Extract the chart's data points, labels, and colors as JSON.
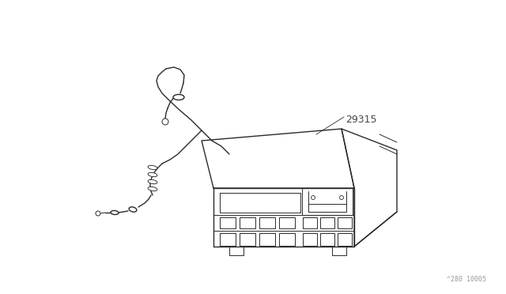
{
  "bg_color": "#ffffff",
  "line_color": "#2a2a2a",
  "label_color": "#444444",
  "part_number": "29315",
  "watermark": "^280 10005",
  "lw_main": 1.0,
  "lw_detail": 0.7,
  "lw_thin": 0.6
}
